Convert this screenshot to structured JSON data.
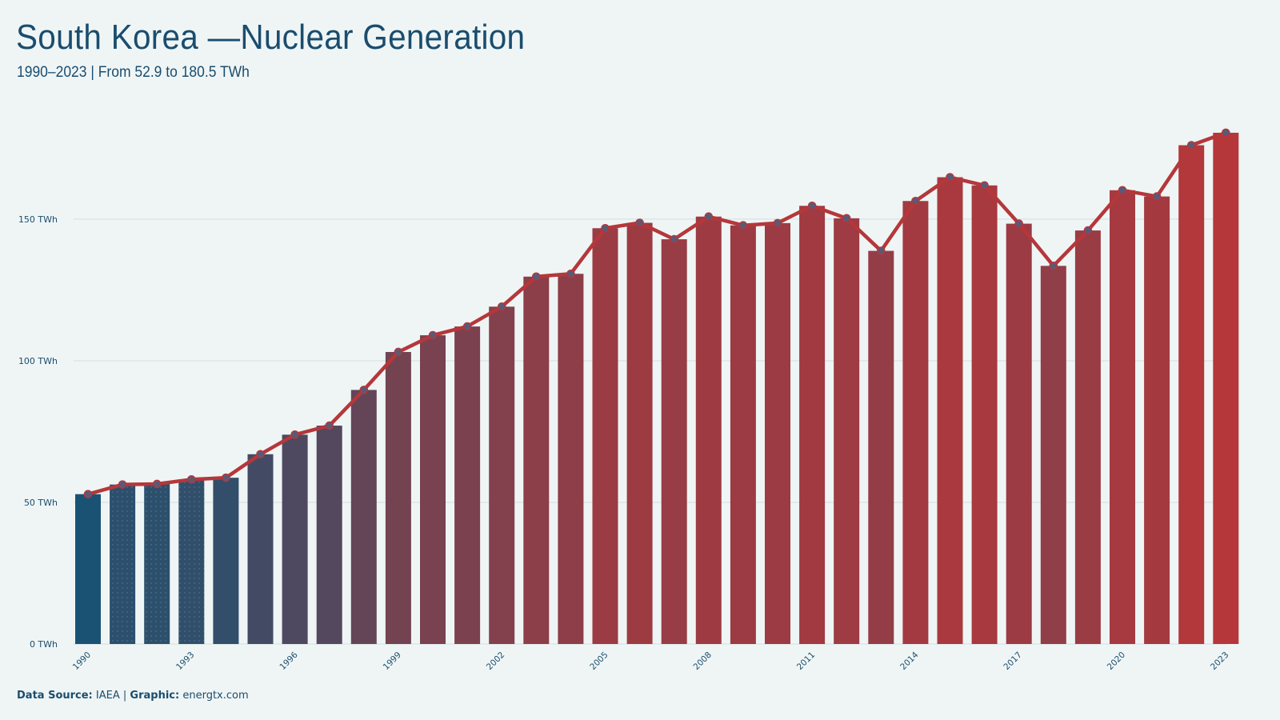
{
  "header": {
    "title": "South Korea —Nuclear Generation",
    "subtitle": "1990–2023 | From 52.9 to 180.5 TWh"
  },
  "footer": {
    "source_label": "Data Source:",
    "source_value": "IAEA",
    "separator": "|",
    "graphic_label": "Graphic:",
    "graphic_value": "energtx.com"
  },
  "colors": {
    "background": "#eff5f5",
    "text": "#1a4d6e",
    "bar_low": "#1a5273",
    "bar_high": "#b5373a",
    "line": "#b5373a",
    "marker_fill": "#5a5a78",
    "grid": "#d3dde0"
  },
  "chart_data": {
    "type": "bar",
    "title": "South Korea —Nuclear Generation",
    "subtitle": "1990–2023 | From 52.9 to 180.5 TWh",
    "xlabel": "",
    "ylabel": "",
    "unit": "TWh",
    "ylim": [
      0,
      185
    ],
    "yticks": [
      0,
      50,
      100,
      150
    ],
    "ytick_labels": [
      "0 TWh",
      "50 TWh",
      "100 TWh",
      "150 TWh"
    ],
    "grid": true,
    "legend": "none",
    "categories": [
      1990,
      1991,
      1992,
      1993,
      1994,
      1995,
      1996,
      1997,
      1998,
      1999,
      2000,
      2001,
      2002,
      2003,
      2004,
      2005,
      2006,
      2007,
      2008,
      2009,
      2010,
      2011,
      2012,
      2013,
      2014,
      2015,
      2016,
      2017,
      2018,
      2019,
      2020,
      2021,
      2022,
      2023
    ],
    "xtick_labels": [
      "1990",
      "1993",
      "1996",
      "1999",
      "2002",
      "2005",
      "2008",
      "2011",
      "2014",
      "2017",
      "2020",
      "2023"
    ],
    "series": [
      {
        "values": [
          52.9,
          56.3,
          56.5,
          58.1,
          58.7,
          67.0,
          73.9,
          77.1,
          89.7,
          103.1,
          109.0,
          112.1,
          119.1,
          129.7,
          130.7,
          146.8,
          148.7,
          142.9,
          150.9,
          147.8,
          148.6,
          154.7,
          150.3,
          138.8,
          156.4,
          164.8,
          161.9,
          148.4,
          133.5,
          146.0,
          160.2,
          158.0,
          176.1,
          180.5
        ]
      }
    ]
  }
}
